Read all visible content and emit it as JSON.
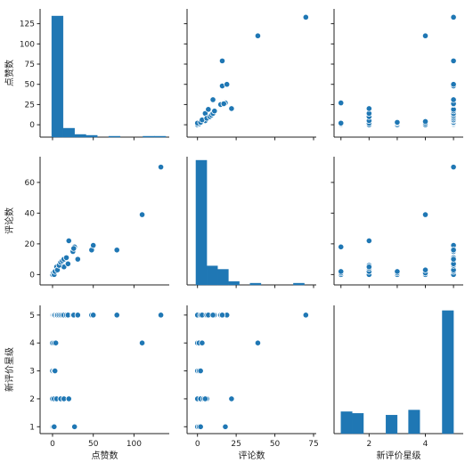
{
  "colors": {
    "marker": "#1f77b4",
    "edge": "#ffffff",
    "axis": "#222222"
  },
  "chart_data": [
    {
      "type": "pairplot",
      "variables": [
        "点赞数",
        "评论数",
        "新评价星级"
      ],
      "ranges": {
        "点赞数": [
          -12,
          140
        ],
        "评论数": [
          -5,
          75
        ],
        "新评价星级": [
          0.85,
          5.25
        ]
      },
      "ticks": {
        "点赞数": [
          0,
          50,
          100
        ],
        "评论数": [
          0,
          25,
          50,
          75
        ],
        "新评价星级": [
          1,
          2,
          3,
          4,
          5
        ]
      },
      "y_ticks": {
        "点赞数": [
          0,
          25,
          50,
          75,
          100,
          125
        ],
        "评论数": [
          0,
          20,
          40,
          60
        ],
        "新评价星级": [
          1,
          2,
          3,
          4,
          5
        ]
      },
      "diag_x_ticks": {
        "新评价星级": [
          2,
          4
        ]
      },
      "points": [
        {
          "likes": 0,
          "comments": 0,
          "rating": 1
        },
        {
          "likes": 1,
          "comments": 1,
          "rating": 1
        },
        {
          "likes": 27,
          "comments": 18,
          "rating": 1
        },
        {
          "likes": 2,
          "comments": 2,
          "rating": 1
        },
        {
          "likes": 0,
          "comments": 0,
          "rating": 2
        },
        {
          "likes": 2,
          "comments": 2,
          "rating": 2
        },
        {
          "likes": 5,
          "comments": 4,
          "rating": 2
        },
        {
          "likes": 10,
          "comments": 6,
          "rating": 2
        },
        {
          "likes": 14,
          "comments": 5,
          "rating": 2
        },
        {
          "likes": 20,
          "comments": 22,
          "rating": 2
        },
        {
          "likes": 0,
          "comments": 0,
          "rating": 3
        },
        {
          "likes": 2,
          "comments": 1,
          "rating": 3
        },
        {
          "likes": 3,
          "comments": 2,
          "rating": 3
        },
        {
          "likes": 0,
          "comments": 0,
          "rating": 4
        },
        {
          "likes": 2,
          "comments": 1,
          "rating": 4
        },
        {
          "likes": 4,
          "comments": 3,
          "rating": 4
        },
        {
          "likes": 110,
          "comments": 39,
          "rating": 4
        },
        {
          "likes": 0,
          "comments": 0,
          "rating": 5
        },
        {
          "likes": 1,
          "comments": 1,
          "rating": 5
        },
        {
          "likes": 2,
          "comments": 0,
          "rating": 5
        },
        {
          "likes": 3,
          "comments": 2,
          "rating": 5
        },
        {
          "likes": 5,
          "comments": 5,
          "rating": 5
        },
        {
          "likes": 6,
          "comments": 3,
          "rating": 5
        },
        {
          "likes": 8,
          "comments": 6,
          "rating": 5
        },
        {
          "likes": 10,
          "comments": 8,
          "rating": 5
        },
        {
          "likes": 12,
          "comments": 9,
          "rating": 5
        },
        {
          "likes": 14,
          "comments": 10,
          "rating": 5
        },
        {
          "likes": 17,
          "comments": 11,
          "rating": 5
        },
        {
          "likes": 19,
          "comments": 7,
          "rating": 5
        },
        {
          "likes": 25,
          "comments": 15,
          "rating": 5
        },
        {
          "likes": 26,
          "comments": 17,
          "rating": 5
        },
        {
          "likes": 31,
          "comments": 10,
          "rating": 5
        },
        {
          "likes": 48,
          "comments": 16,
          "rating": 5
        },
        {
          "likes": 50,
          "comments": 19,
          "rating": 5
        },
        {
          "likes": 79,
          "comments": 16,
          "rating": 5
        },
        {
          "likes": 133,
          "comments": 70,
          "rating": 5
        }
      ],
      "histograms": {
        "点赞数": {
          "bins": [
            -1,
            13,
            27,
            41,
            55,
            69,
            83,
            97,
            111,
            125,
            139
          ],
          "counts": [
            136,
            10,
            3,
            2,
            0,
            1,
            0,
            0,
            1,
            1
          ],
          "ylim": [
            0,
            140
          ]
        },
        "评论数": {
          "bins": [
            -1,
            6,
            13,
            20,
            27,
            34,
            41,
            48,
            55,
            62,
            69
          ],
          "counts": [
            72,
            11,
            9,
            2,
            0,
            1,
            0,
            0,
            0,
            1
          ],
          "ylim": [
            0,
            72
          ]
        },
        "新评价星级": {
          "bins": [
            1,
            1.4,
            1.8,
            2.2,
            2.6,
            3.0,
            3.4,
            3.8,
            4.2,
            4.6,
            5.0
          ],
          "counts": [
            13,
            12,
            0,
            0,
            11,
            0,
            14,
            0,
            0,
            73
          ],
          "ylim": [
            0,
            74
          ]
        }
      }
    }
  ]
}
